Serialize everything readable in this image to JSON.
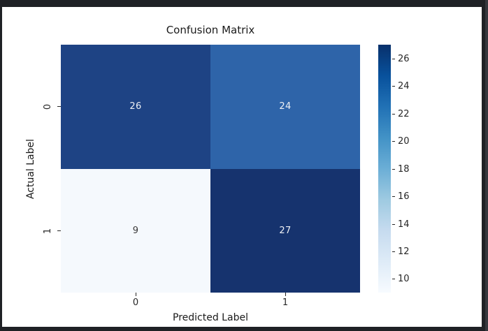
{
  "frame": {
    "figure_background": "#ffffff",
    "chrome_background": "#1f2125",
    "chrome_edge_strip": "#35373d"
  },
  "chart_data": {
    "type": "heatmap",
    "title": "Confusion Matrix",
    "xlabel": "Predicted Label",
    "ylabel": "Actual Label",
    "x_tick_labels": [
      "0",
      "1"
    ],
    "y_tick_labels": [
      "0",
      "1"
    ],
    "matrix": [
      [
        26,
        24
      ],
      [
        9,
        27
      ]
    ],
    "vmin": 9,
    "vmax": 27,
    "colormap": "Blues",
    "grid": false,
    "legend": "colorbar-right",
    "colorbar_ticks": [
      "26",
      "24",
      "22",
      "20",
      "18",
      "16",
      "14",
      "12",
      "10"
    ],
    "cell_colors": [
      [
        "#1e4384",
        "#2e64a9"
      ],
      [
        "#f5f9fd",
        "#16336e"
      ]
    ],
    "cell_text_colors": [
      [
        "#eef0f4",
        "#eef0f4"
      ],
      [
        "#3a3a3a",
        "#eef0f4"
      ]
    ],
    "colorbar_gradient": [
      "#08306b",
      "#08519c",
      "#2171b5",
      "#4292c6",
      "#6baed6",
      "#9ecae1",
      "#c6dbef",
      "#deebf7",
      "#f7fbff"
    ]
  }
}
